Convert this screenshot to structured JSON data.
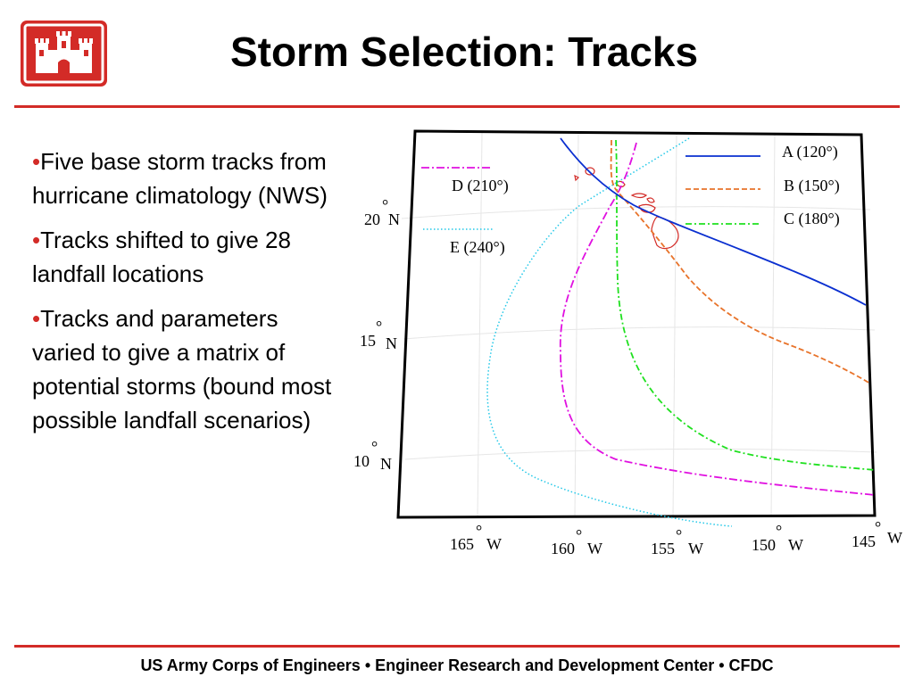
{
  "header": {
    "title": "Storm Selection: Tracks",
    "logo_color": "#d32b27"
  },
  "bullets": [
    "Five base storm tracks from hurricane climatology (NWS)",
    "Tracks shifted to give 28 landfall locations",
    "Tracks and parameters varied to give a matrix of potential storms (bound most possible landfall scenarios)"
  ],
  "map": {
    "legend": {
      "A": "A (120°)",
      "B": "B (150°)",
      "C": "C (180°)",
      "D": "D (210°)",
      "E": "E (240°)"
    },
    "lat_labels": [
      "20",
      "15",
      "10"
    ],
    "lat_suffix": "N",
    "lon_labels": [
      "165",
      "160",
      "155",
      "150",
      "145"
    ],
    "lon_suffix": "W",
    "degree_mark": "°",
    "colors": {
      "A": "#0a2fd0",
      "B": "#e8732a",
      "C": "#1fe01f",
      "D": "#e010e0",
      "E": "#22c8e8",
      "islands": "#d32b27"
    }
  },
  "footer": {
    "text": "US Army Corps of Engineers • Engineer Research and Development Center • CFDC"
  }
}
